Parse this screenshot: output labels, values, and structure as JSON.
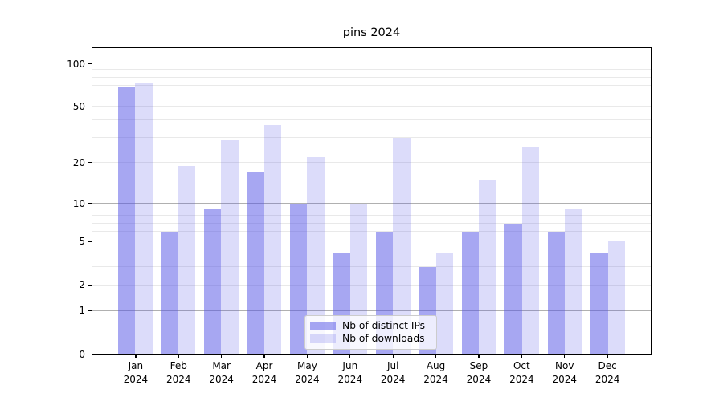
{
  "chart_data": {
    "type": "bar",
    "title": "pins 2024",
    "categories": [
      "Jan 2024",
      "Feb 2024",
      "Mar 2024",
      "Apr 2024",
      "May 2024",
      "Jun 2024",
      "Jul 2024",
      "Aug 2024",
      "Sep 2024",
      "Oct 2024",
      "Nov 2024",
      "Dec 2024"
    ],
    "series": [
      {
        "name": "Nb of distinct IPs",
        "color": "rgba(80,80,230,0.5)",
        "values": [
          68,
          6,
          9,
          17,
          10,
          4,
          6,
          3,
          6,
          7,
          6,
          4
        ]
      },
      {
        "name": "Nb of downloads",
        "color": "rgba(80,80,230,0.2)",
        "values": [
          73,
          19,
          29,
          37,
          22,
          10,
          30,
          4,
          15,
          26,
          9,
          5
        ]
      }
    ],
    "xlabel": "",
    "ylabel": "",
    "y_scale": "log1p",
    "ylim": [
      0,
      128
    ],
    "y_tick_values": [
      0,
      1,
      2,
      5,
      10,
      20,
      50,
      100
    ],
    "y_tick_labels": [
      "0",
      "1",
      "2",
      "5",
      "10",
      "20",
      "50",
      "100"
    ],
    "y_minor_gridlines": [
      3,
      4,
      6,
      7,
      8,
      9,
      30,
      40,
      60,
      70,
      80,
      90
    ],
    "y_decade_gridlines": [
      1,
      10,
      100
    ],
    "grid": "on",
    "legend_position": "lower center",
    "colors": {
      "spine": "#000000",
      "grid_major": "#b0b0b0",
      "grid_minor": "#e9e9e9",
      "text": "#000000",
      "legend_border": "#cccccc",
      "legend_bg": "rgba(255,255,255,0.8)"
    }
  }
}
